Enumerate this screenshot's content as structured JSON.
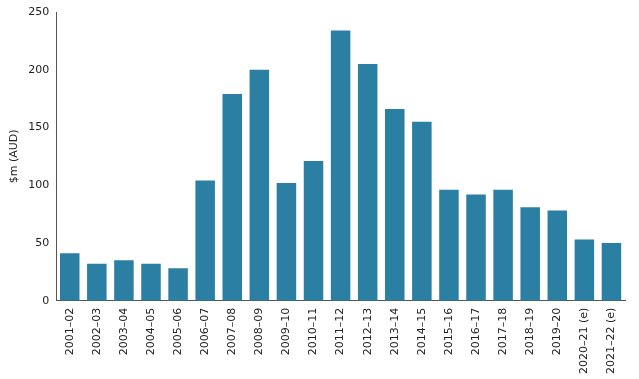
{
  "chart_data": {
    "type": "bar",
    "y_label": "$m (AUD)",
    "categories": [
      "2001–02",
      "2002–03",
      "2003–04",
      "2004–05",
      "2005–06",
      "2006–07",
      "2007–08",
      "2008–09",
      "2009–10",
      "2010–11",
      "2011–12",
      "2012–13",
      "2013–14",
      "2014–15",
      "2015–16",
      "2016–17",
      "2017–18",
      "2018–19",
      "2019–20",
      "2020–21 (e)",
      "2021–22 (e)"
    ],
    "values": [
      41,
      32,
      35,
      32,
      28,
      104,
      179,
      200,
      102,
      121,
      234,
      205,
      166,
      155,
      96,
      92,
      96,
      81,
      78,
      53,
      50
    ],
    "color": "#2a7fa3",
    "ylim": [
      0,
      250
    ],
    "yticks": [
      0,
      50,
      100,
      150,
      200,
      250
    ],
    "grid": false
  }
}
